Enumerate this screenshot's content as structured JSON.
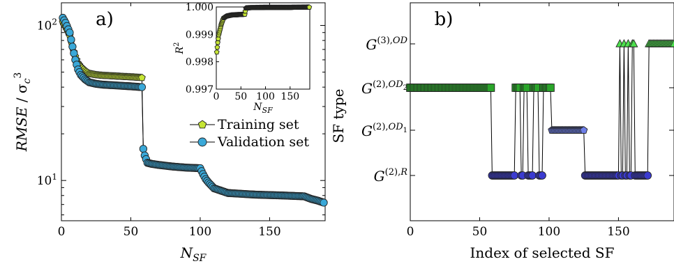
{
  "chart_data": [
    {
      "panel": "a)",
      "type": "scatter",
      "xlabel": "N_SF",
      "ylabel": "RMSE / σ_c^3",
      "yscale": "log",
      "xlim": [
        0,
        190
      ],
      "ylim": [
        5.5,
        140
      ],
      "xticks": [
        "0",
        "50",
        "100",
        "150"
      ],
      "yticks": [
        "10^1",
        "10^2"
      ],
      "legend": {
        "position": "right-middle",
        "entries": [
          "Training set",
          "Validation set"
        ]
      },
      "series": [
        {
          "name": "Training set",
          "color": "#c6e535",
          "marker": "pentagon",
          "x": [
            1,
            3,
            6,
            8,
            10,
            12,
            14,
            17,
            20,
            25,
            30,
            40,
            50,
            58,
            59,
            60,
            62,
            65,
            70,
            80,
            90,
            100,
            102,
            104,
            106,
            110,
            120,
            140,
            160,
            175,
            180,
            185,
            189
          ],
          "y": [
            105,
            98,
            86,
            72,
            63,
            57,
            54,
            51,
            49,
            48,
            47.5,
            47,
            46.5,
            46,
            16,
            14.5,
            13,
            12.8,
            12.6,
            12.3,
            12.1,
            12,
            11,
            10.2,
            9.7,
            8.9,
            8.3,
            8.1,
            8.0,
            7.9,
            7.6,
            7.4,
            7.2
          ]
        },
        {
          "name": "Validation set",
          "color": "#3aa8d8",
          "marker": "circle",
          "x": [
            1,
            3,
            6,
            8,
            10,
            12,
            14,
            17,
            20,
            25,
            30,
            40,
            50,
            58,
            59,
            60,
            62,
            65,
            70,
            80,
            90,
            100,
            102,
            104,
            106,
            110,
            120,
            140,
            160,
            175,
            180,
            185,
            189
          ],
          "y": [
            112,
            104,
            90,
            73,
            60,
            52,
            48,
            45,
            43,
            42,
            41.5,
            41,
            40.5,
            40,
            16,
            14.5,
            13,
            12.8,
            12.6,
            12.3,
            12.1,
            12,
            11,
            10.2,
            9.7,
            8.9,
            8.3,
            8.1,
            8.0,
            7.9,
            7.6,
            7.4,
            7.2
          ]
        }
      ],
      "inset": {
        "type": "scatter",
        "xlabel": "N_SF",
        "ylabel": "R^2",
        "xlim": [
          0,
          190
        ],
        "ylim": [
          0.997,
          1.0
        ],
        "xticks": [
          "0",
          "50",
          "100",
          "150"
        ],
        "yticks": [
          "0.997",
          "0.998",
          "0.999",
          "1.000"
        ],
        "color": "#c6e535",
        "x": [
          1,
          3,
          5,
          8,
          10,
          12,
          15,
          20,
          30,
          40,
          50,
          58,
          60,
          70,
          100,
          150,
          189
        ],
        "y": [
          0.99835,
          0.9987,
          0.99898,
          0.9992,
          0.99935,
          0.99945,
          0.9996,
          0.99966,
          0.9997,
          0.99971,
          0.99972,
          0.99973,
          0.99996,
          0.99997,
          0.99998,
          0.99998,
          0.99999
        ]
      }
    },
    {
      "panel": "b)",
      "type": "scatter",
      "xlabel": "Index of selected SF",
      "ylabel": "SF type",
      "xlim": [
        0,
        190
      ],
      "xticks": [
        "0",
        "50",
        "100",
        "150"
      ],
      "categories": [
        "G^(2),R",
        "G^(2),OD_1",
        "G^(2),OD_2",
        "G^(3),OD"
      ],
      "series": [
        {
          "name": "G^(2),OD_2",
          "category": 2,
          "color": "#2aa52a",
          "marker": "square",
          "x_ranges": [
            [
              0,
              58
            ],
            [
              76,
              79
            ],
            [
              82,
              84
            ],
            [
              89,
              92
            ],
            [
              96,
              101
            ]
          ]
        },
        {
          "name": "G^(2),R",
          "category": 0,
          "color": "#3b3bd0",
          "marker": "circle",
          "x_ranges": [
            [
              59,
              76
            ],
            [
              80,
              81
            ],
            [
              85,
              88
            ],
            [
              93,
              95
            ],
            [
              126,
              150
            ],
            [
              152,
              153
            ],
            [
              155,
              156
            ],
            [
              158,
              159
            ],
            [
              162,
              171
            ]
          ]
        },
        {
          "name": "G^(2),OD_1",
          "category": 1,
          "color": "#6e7fe8",
          "marker": "pentagon",
          "x_ranges": [
            [
              101,
              125
            ]
          ]
        },
        {
          "name": "G^(3),OD",
          "category": 3,
          "color": "#4de04d",
          "marker": "triangle",
          "x_ranges": [
            [
              151,
              151
            ],
            [
              154,
              154
            ],
            [
              157,
              157
            ],
            [
              160,
              161
            ],
            [
              171,
              190
            ]
          ]
        }
      ]
    }
  ]
}
